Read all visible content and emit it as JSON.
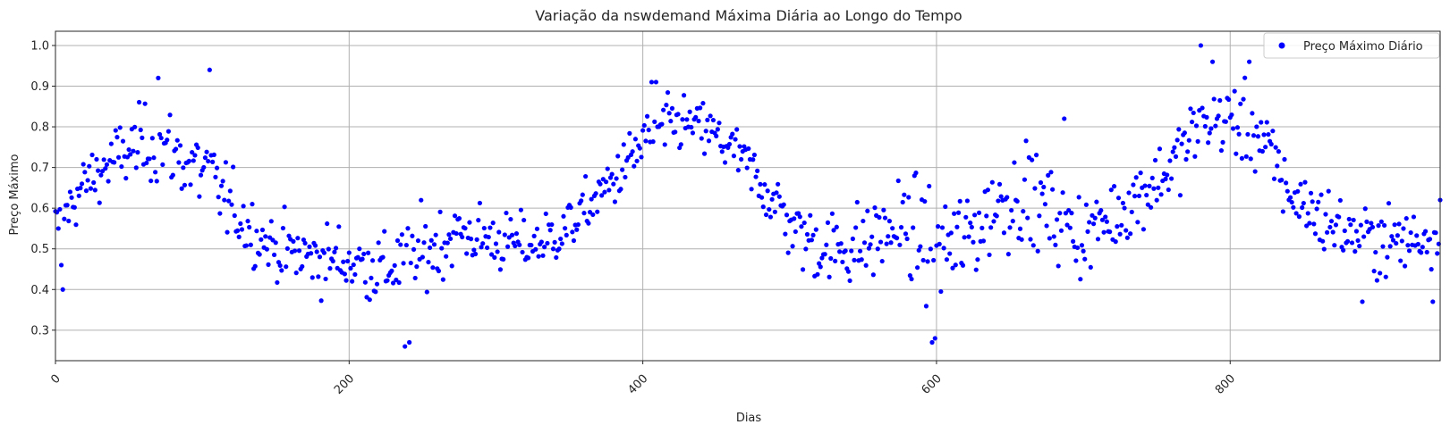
{
  "chart_data": {
    "type": "scatter",
    "title": "Variação da nswdemand Máxima Diária ao Longo do Tempo",
    "xlabel": "Dias",
    "ylabel": "Preço Máximo",
    "xlim": [
      0,
      943
    ],
    "ylim": [
      0.225,
      1.035
    ],
    "xticks": [
      0,
      200,
      400,
      600,
      800
    ],
    "yticks": [
      0.3,
      0.4,
      0.5,
      0.6,
      0.7,
      0.8,
      0.9,
      1.0
    ],
    "grid": true,
    "legend_position": "top-right",
    "x_tick_rotation": 45,
    "series": [
      {
        "name": "Preço Máximo Diário",
        "color": "#0000ff",
        "marker": "circle",
        "num_points": 943,
        "trend_anchors": [
          [
            0,
            0.55
          ],
          [
            20,
            0.66
          ],
          [
            40,
            0.72
          ],
          [
            60,
            0.76
          ],
          [
            75,
            0.75
          ],
          [
            90,
            0.71
          ],
          [
            105,
            0.68
          ],
          [
            120,
            0.6
          ],
          [
            135,
            0.54
          ],
          [
            150,
            0.5
          ],
          [
            175,
            0.48
          ],
          [
            200,
            0.47
          ],
          [
            225,
            0.45
          ],
          [
            250,
            0.49
          ],
          [
            275,
            0.54
          ],
          [
            300,
            0.52
          ],
          [
            325,
            0.51
          ],
          [
            345,
            0.54
          ],
          [
            365,
            0.61
          ],
          [
            385,
            0.69
          ],
          [
            405,
            0.78
          ],
          [
            425,
            0.81
          ],
          [
            445,
            0.79
          ],
          [
            465,
            0.73
          ],
          [
            485,
            0.64
          ],
          [
            505,
            0.54
          ],
          [
            525,
            0.5
          ],
          [
            550,
            0.51
          ],
          [
            575,
            0.56
          ],
          [
            600,
            0.5
          ],
          [
            620,
            0.52
          ],
          [
            640,
            0.61
          ],
          [
            660,
            0.64
          ],
          [
            680,
            0.58
          ],
          [
            700,
            0.53
          ],
          [
            720,
            0.58
          ],
          [
            740,
            0.64
          ],
          [
            760,
            0.7
          ],
          [
            780,
            0.81
          ],
          [
            800,
            0.82
          ],
          [
            820,
            0.78
          ],
          [
            840,
            0.64
          ],
          [
            860,
            0.58
          ],
          [
            880,
            0.54
          ],
          [
            900,
            0.52
          ],
          [
            920,
            0.52
          ],
          [
            943,
            0.54
          ]
        ],
        "spread_anchors": [
          [
            0,
            0.06
          ],
          [
            100,
            0.1
          ],
          [
            130,
            0.07
          ],
          [
            200,
            0.08
          ],
          [
            250,
            0.09
          ],
          [
            300,
            0.07
          ],
          [
            360,
            0.06
          ],
          [
            400,
            0.07
          ],
          [
            460,
            0.06
          ],
          [
            500,
            0.08
          ],
          [
            560,
            0.1
          ],
          [
            600,
            0.12
          ],
          [
            650,
            0.12
          ],
          [
            700,
            0.09
          ],
          [
            760,
            0.08
          ],
          [
            800,
            0.09
          ],
          [
            860,
            0.08
          ],
          [
            943,
            0.07
          ]
        ],
        "notable_points": [
          [
            1,
            0.59
          ],
          [
            2,
            0.55
          ],
          [
            4,
            0.46
          ],
          [
            5,
            0.4
          ],
          [
            70,
            0.92
          ],
          [
            105,
            0.94
          ],
          [
            238,
            0.26
          ],
          [
            241,
            0.27
          ],
          [
            406,
            0.91
          ],
          [
            409,
            0.91
          ],
          [
            597,
            0.27
          ],
          [
            599,
            0.28
          ],
          [
            687,
            0.82
          ],
          [
            780,
            1.0
          ],
          [
            788,
            0.96
          ],
          [
            813,
            0.96
          ],
          [
            890,
            0.37
          ],
          [
            938,
            0.37
          ],
          [
            943,
            0.62
          ]
        ]
      }
    ]
  }
}
